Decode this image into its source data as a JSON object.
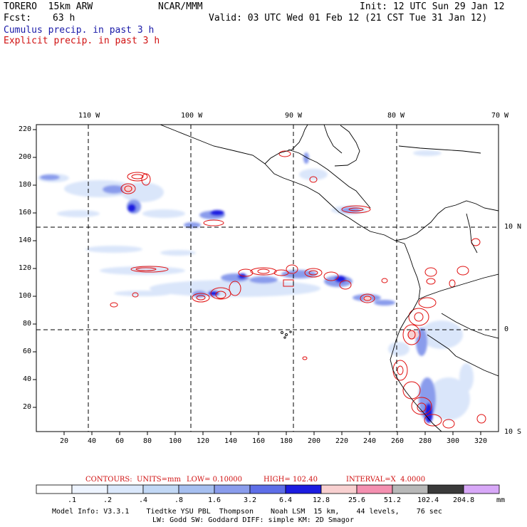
{
  "header": {
    "model_name": "TORERO  15km ARW",
    "org": "NCAR/MMM",
    "init": "Init: 12 UTC Sun 29 Jan 12",
    "fcst_label": "Fcst:",
    "fcst_value": "63 h",
    "valid": "Valid: 03 UTC Wed 01 Feb 12 (21 CST Tue 31 Jan 12)",
    "legend_cumulus": "Cumulus precip. in past 3 h",
    "legend_explicit": "Explicit precip. in past 3 h"
  },
  "colors": {
    "cumulus": "#1a1aa8",
    "explicit": "#d01010",
    "contour": "#e01010"
  },
  "map": {
    "lon_labels": [
      "110 W",
      "100 W",
      "90 W",
      "80 W",
      "70 W"
    ],
    "lat_labels": [
      "10 N",
      "0",
      "10 S"
    ],
    "y_ticks": [
      "220",
      "200",
      "180",
      "160",
      "140",
      "120",
      "100",
      "80",
      "60",
      "40",
      "20"
    ],
    "x_ticks": [
      "20",
      "40",
      "60",
      "80",
      "100",
      "120",
      "140",
      "160",
      "180",
      "200",
      "220",
      "240",
      "260",
      "280",
      "300",
      "320"
    ]
  },
  "contour_info": {
    "contours_label": "CONTOURS:",
    "units": "UNITS=mm",
    "low": "LOW= 0.10000",
    "high": "HIGH= 102.40",
    "interval": "INTERVAL=X  4.0000"
  },
  "colorbar": {
    "labels": [
      ".1",
      ".2",
      ".4",
      ".8",
      "1.6",
      "3.2",
      "6.4",
      "12.8",
      "25.6",
      "51.2",
      "102.4",
      "204.8"
    ],
    "unit": "mm",
    "colors": [
      "#ffffff",
      "#eef4ff",
      "#dbe8fb",
      "#c2d8f5",
      "#a6bff0",
      "#8a9cec",
      "#5e6ee8",
      "#1c1ce0",
      "#f8d0d0",
      "#f490b0",
      "#b8b8b8",
      "#3a3a3a",
      "#d8a8f8"
    ]
  },
  "footer": {
    "line1": "Model Info: V3.3.1    Tiedtke YSU PBL  Thompson    Noah LSM  15 km,    44 levels,    76 sec",
    "line2": "LW: Godd SW: Goddard DIFF: simple KM: 2D Smagor"
  }
}
